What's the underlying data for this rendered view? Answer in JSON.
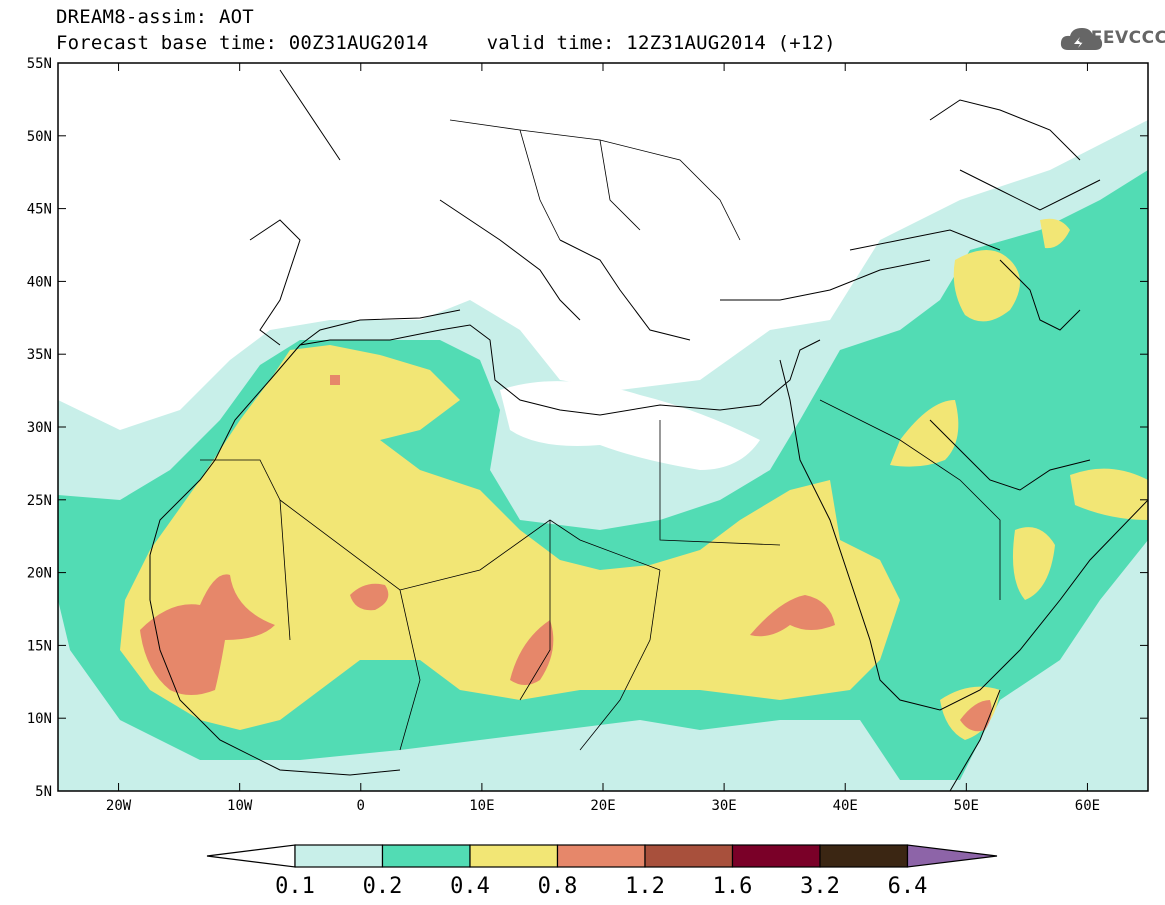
{
  "header": {
    "title_line1": "DREAM8-assim: AOT",
    "title_line2": "Forecast base time: 00Z31AUG2014     valid time: 12Z31AUG2014 (+12)",
    "logo_text": "SEEVCCC",
    "logo_icon": "cloud-icon"
  },
  "map": {
    "lon_range": [
      -25,
      65
    ],
    "lat_range": [
      5,
      55
    ],
    "lat_ticks": [
      "5N",
      "10N",
      "15N",
      "20N",
      "25N",
      "30N",
      "35N",
      "40N",
      "45N",
      "50N",
      "55N"
    ],
    "lon_ticks": [
      "20W",
      "10W",
      "0",
      "10E",
      "20E",
      "30E",
      "40E",
      "50E",
      "60E"
    ]
  },
  "colorbar": {
    "labels": [
      "0.1",
      "0.2",
      "0.4",
      "0.8",
      "1.2",
      "1.6",
      "3.2",
      "6.4"
    ],
    "colors": [
      "#ffffff",
      "#c8efe9",
      "#52dcb4",
      "#f2e675",
      "#e6876a",
      "#a8503c",
      "#7a0028",
      "#3b2613",
      "#8d64a8"
    ]
  }
}
